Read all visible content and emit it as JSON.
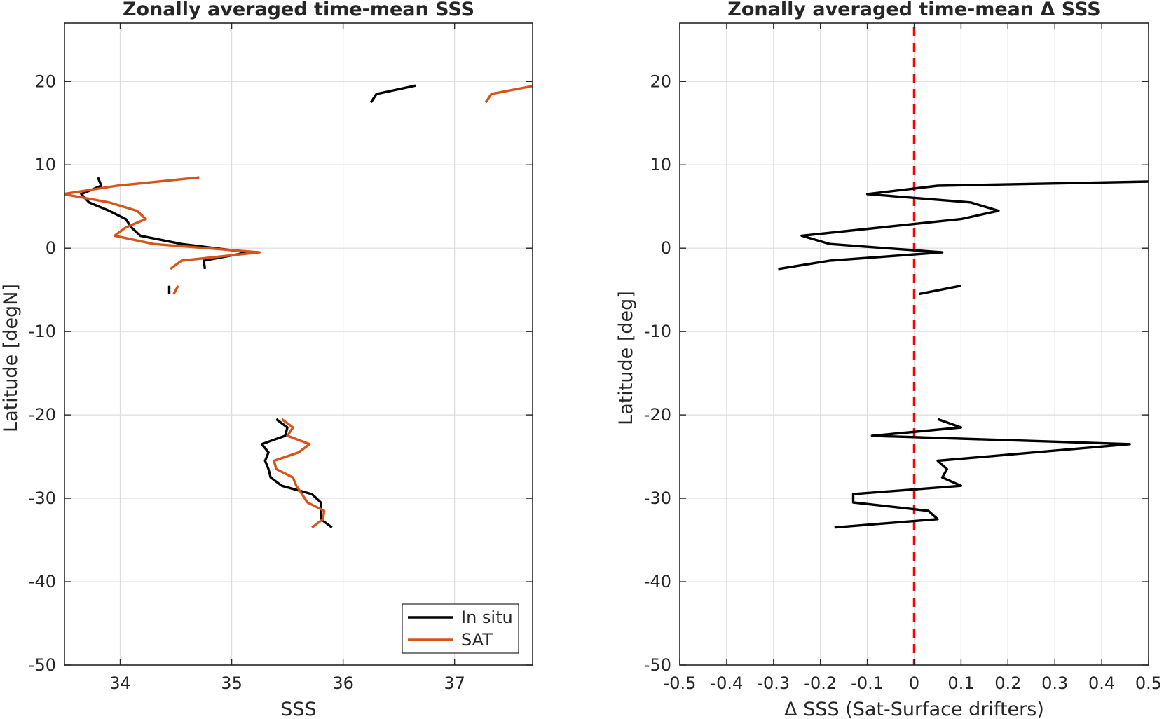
{
  "figure": {
    "charts_count": 2
  },
  "chart_data": [
    {
      "type": "line",
      "title": "Zonally averaged time-mean SSS",
      "xlabel": "SSS",
      "ylabel": "Latitude [degN]",
      "xlim": [
        33.5,
        37.7
      ],
      "ylim": [
        -50,
        27
      ],
      "xticks": [
        34,
        35,
        36,
        37
      ],
      "yticks": [
        -50,
        -40,
        -30,
        -20,
        -10,
        0,
        10,
        20
      ],
      "grid": true,
      "legend": {
        "placement": "bottom-right",
        "entries": [
          "In situ",
          "SAT"
        ]
      },
      "series": [
        {
          "name": "In situ",
          "color": "#000000",
          "segments": [
            [
              [
                36.25,
                17.5
              ],
              [
                36.3,
                18.5
              ],
              [
                36.65,
                19.5
              ]
            ],
            [
              [
                33.8,
                8.5
              ],
              [
                33.83,
                7.5
              ],
              [
                33.65,
                6.5
              ],
              [
                33.72,
                5.5
              ],
              [
                33.9,
                4.5
              ],
              [
                34.05,
                3.5
              ],
              [
                34.1,
                2.5
              ],
              [
                34.18,
                1.5
              ],
              [
                34.55,
                0.5
              ],
              [
                35.15,
                -0.5
              ],
              [
                34.75,
                -1.5
              ],
              [
                34.76,
                -2.5
              ]
            ],
            [
              [
                34.44,
                -4.5
              ],
              [
                34.44,
                -5.5
              ]
            ],
            [
              [
                35.4,
                -20.5
              ],
              [
                35.5,
                -21.5
              ],
              [
                35.48,
                -22.5
              ],
              [
                35.27,
                -23.5
              ],
              [
                35.33,
                -24.5
              ],
              [
                35.3,
                -25.5
              ],
              [
                35.33,
                -26.5
              ],
              [
                35.35,
                -27.5
              ],
              [
                35.45,
                -28.5
              ],
              [
                35.72,
                -29.5
              ],
              [
                35.8,
                -30.5
              ],
              [
                35.8,
                -31.5
              ],
              [
                35.8,
                -32.5
              ],
              [
                35.9,
                -33.5
              ]
            ]
          ]
        },
        {
          "name": "SAT",
          "color": "#d95319",
          "segments": [
            [
              [
                37.28,
                17.5
              ],
              [
                37.33,
                18.5
              ],
              [
                37.72,
                19.5
              ]
            ],
            [
              [
                34.71,
                8.5
              ],
              [
                33.97,
                7.5
              ],
              [
                33.49,
                6.5
              ],
              [
                33.9,
                5.5
              ],
              [
                34.15,
                4.5
              ],
              [
                34.23,
                3.5
              ],
              [
                34.05,
                2.5
              ],
              [
                33.95,
                1.5
              ],
              [
                34.3,
                0.5
              ],
              [
                35.25,
                -0.5
              ],
              [
                34.55,
                -1.5
              ],
              [
                34.45,
                -2.5
              ]
            ],
            [
              [
                34.52,
                -4.5
              ],
              [
                34.48,
                -5.5
              ]
            ],
            [
              [
                35.45,
                -20.5
              ],
              [
                35.55,
                -21.5
              ],
              [
                35.5,
                -22.5
              ],
              [
                35.7,
                -23.5
              ],
              [
                35.6,
                -24.5
              ],
              [
                35.38,
                -25.5
              ],
              [
                35.4,
                -26.5
              ],
              [
                35.55,
                -27.5
              ],
              [
                35.58,
                -28.5
              ],
              [
                35.63,
                -29.5
              ],
              [
                35.68,
                -30.5
              ],
              [
                35.83,
                -31.5
              ],
              [
                35.82,
                -32.5
              ],
              [
                35.72,
                -33.5
              ]
            ]
          ]
        }
      ]
    },
    {
      "type": "line",
      "title": "Zonally averaged time-mean Δ SSS",
      "xlabel": "Δ SSS (Sat-Surface drifters)",
      "ylabel": "Latitude [deg]",
      "xlim": [
        -0.5,
        0.5
      ],
      "ylim": [
        -50,
        27
      ],
      "xticks": [
        -0.5,
        -0.4,
        -0.3,
        -0.2,
        -0.1,
        0,
        0.1,
        0.2,
        0.3,
        0.4,
        0.5
      ],
      "xticklabels": [
        "-0.5",
        "-0.4",
        "-0.3",
        "-0.2",
        "-0.1",
        "0",
        "0.1",
        "0.2",
        "0.3",
        "0.4",
        "0.5"
      ],
      "yticks": [
        -50,
        -40,
        -30,
        -20,
        -10,
        0,
        10,
        20
      ],
      "grid": true,
      "reference_line": {
        "x": 0,
        "color": "#ff0000",
        "style": "dashed"
      },
      "series": [
        {
          "name": "",
          "color": "#000000",
          "segments": [
            [
              [
                0.5,
                8.0
              ],
              [
                0.05,
                7.5
              ],
              [
                -0.1,
                6.5
              ],
              [
                0.12,
                5.5
              ],
              [
                0.18,
                4.5
              ],
              [
                0.1,
                3.5
              ],
              [
                -0.07,
                2.5
              ],
              [
                -0.24,
                1.5
              ],
              [
                -0.18,
                0.5
              ],
              [
                0.06,
                -0.5
              ],
              [
                -0.18,
                -1.5
              ],
              [
                -0.29,
                -2.5
              ]
            ],
            [
              [
                0.1,
                -4.5
              ],
              [
                0.01,
                -5.5
              ]
            ],
            [
              [
                0.05,
                -20.5
              ],
              [
                0.1,
                -21.5
              ],
              [
                -0.09,
                -22.5
              ],
              [
                0.46,
                -23.5
              ],
              [
                0.05,
                -25.5
              ],
              [
                0.07,
                -26.5
              ],
              [
                0.06,
                -27.5
              ],
              [
                0.1,
                -28.5
              ],
              [
                -0.13,
                -29.5
              ],
              [
                -0.13,
                -30.5
              ],
              [
                0.03,
                -31.5
              ],
              [
                0.05,
                -32.5
              ],
              [
                -0.17,
                -33.5
              ]
            ]
          ]
        }
      ]
    }
  ]
}
